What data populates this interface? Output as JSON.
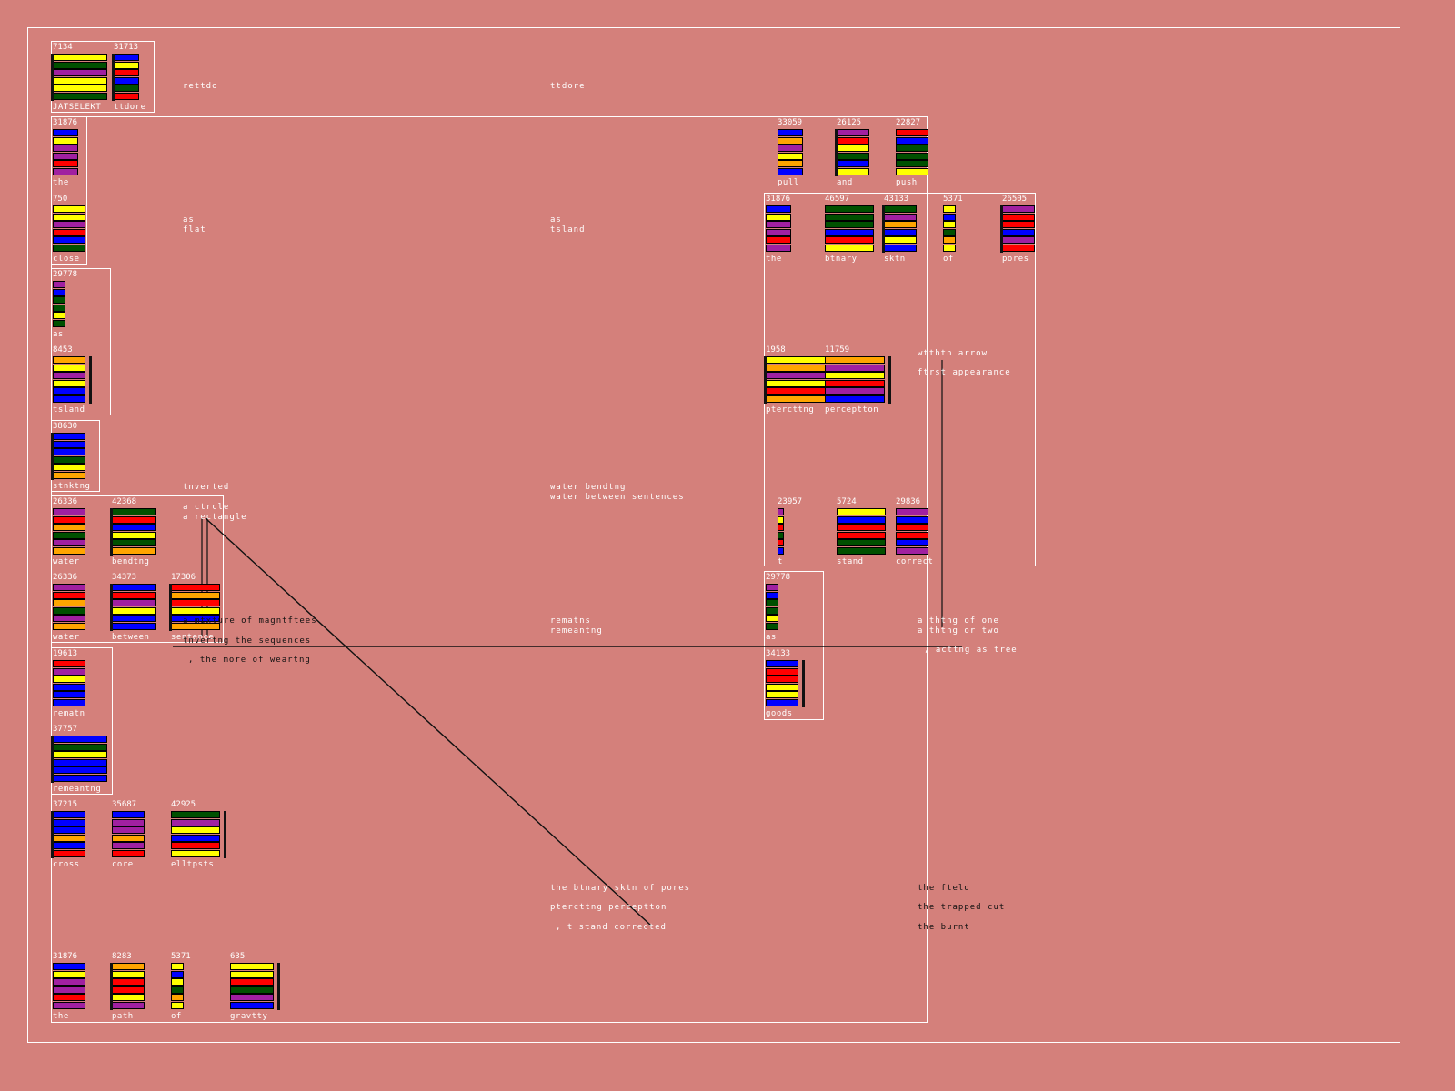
{
  "palette": {
    "background": "#d4807b",
    "frame": "#ffffff",
    "ink": "#111111",
    "label": "#ffffff",
    "yellow": "#ffff00",
    "blue": "#0000ff",
    "purple": "#a020a0",
    "green": "#005000",
    "red": "#ff0000",
    "orange": "#ffa500"
  },
  "words": [
    {
      "id": "w1",
      "number": "7134",
      "label": "JATSELEKT",
      "rule": "left",
      "bars": [
        [
          "yellow",
          1
        ],
        [
          "green",
          1
        ],
        [
          "purple",
          1
        ],
        [
          "yellow",
          1
        ],
        [
          "yellow",
          1
        ],
        [
          "green",
          1
        ]
      ]
    },
    {
      "id": "w2",
      "number": "31713",
      "label": "ttdore",
      "rule": "left",
      "bars": [
        [
          "blue",
          1
        ],
        [
          "yellow",
          1
        ],
        [
          "red",
          1
        ],
        [
          "blue",
          1
        ],
        [
          "green",
          1
        ],
        [
          "red",
          1
        ]
      ]
    },
    {
      "id": "w3",
      "number": "31876",
      "label": "the",
      "bars": [
        [
          "blue",
          1
        ],
        [
          "yellow",
          1
        ],
        [
          "purple",
          1
        ],
        [
          "purple",
          1
        ],
        [
          "red",
          1
        ],
        [
          "purple",
          1
        ]
      ]
    },
    {
      "id": "w4",
      "number": "750",
      "label": "close",
      "bars": [
        [
          "yellow",
          1
        ],
        [
          "yellow",
          1
        ],
        [
          "purple",
          1
        ],
        [
          "red",
          1
        ],
        [
          "blue",
          1
        ],
        [
          "green",
          1
        ]
      ]
    },
    {
      "id": "w5",
      "number": "29778",
      "label": "as",
      "bars": [
        [
          "purple",
          1
        ],
        [
          "blue",
          1
        ],
        [
          "green",
          1
        ],
        [
          "green",
          1
        ],
        [
          "yellow",
          1
        ],
        [
          "green",
          1
        ]
      ]
    },
    {
      "id": "w6",
      "number": "8453",
      "label": "tsland",
      "rule": "right",
      "bars": [
        [
          "orange",
          1
        ],
        [
          "yellow",
          1
        ],
        [
          "purple",
          1
        ],
        [
          "yellow",
          1
        ],
        [
          "blue",
          1
        ],
        [
          "blue",
          1
        ]
      ]
    },
    {
      "id": "w7",
      "number": "38630",
      "label": "stnktng",
      "rule": "left",
      "bars": [
        [
          "blue",
          1
        ],
        [
          "blue",
          1
        ],
        [
          "blue",
          1
        ],
        [
          "green",
          1
        ],
        [
          "yellow",
          1
        ],
        [
          "orange",
          1
        ]
      ]
    },
    {
      "id": "w8",
      "number": "26336",
      "label": "water",
      "bars": [
        [
          "purple",
          1
        ],
        [
          "red",
          1
        ],
        [
          "orange",
          1
        ],
        [
          "green",
          1
        ],
        [
          "purple",
          1
        ],
        [
          "orange",
          1
        ]
      ]
    },
    {
      "id": "w9",
      "number": "42368",
      "label": "bendtng",
      "rule": "left",
      "bars": [
        [
          "green",
          1
        ],
        [
          "red",
          1
        ],
        [
          "blue",
          1
        ],
        [
          "yellow",
          1
        ],
        [
          "green",
          1
        ],
        [
          "orange",
          1
        ]
      ]
    },
    {
      "id": "w10",
      "number": "26336",
      "label": "water",
      "bars": [
        [
          "purple",
          1
        ],
        [
          "red",
          1
        ],
        [
          "orange",
          1
        ],
        [
          "green",
          1
        ],
        [
          "purple",
          1
        ],
        [
          "orange",
          1
        ]
      ]
    },
    {
      "id": "w11",
      "number": "34373",
      "label": "between",
      "rule": "left",
      "bars": [
        [
          "blue",
          1
        ],
        [
          "red",
          1
        ],
        [
          "purple",
          1
        ],
        [
          "yellow",
          1
        ],
        [
          "blue",
          1
        ],
        [
          "blue",
          1
        ]
      ]
    },
    {
      "id": "w12",
      "number": "17306",
      "label": "sentence",
      "rule": "left",
      "bars": [
        [
          "red",
          1
        ],
        [
          "orange",
          1
        ],
        [
          "red",
          1
        ],
        [
          "yellow",
          1
        ],
        [
          "blue",
          1
        ],
        [
          "orange",
          1
        ]
      ]
    },
    {
      "id": "w13",
      "number": "19613",
      "label": "rematn",
      "bars": [
        [
          "red",
          1
        ],
        [
          "purple",
          1
        ],
        [
          "yellow",
          1
        ],
        [
          "blue",
          1
        ],
        [
          "blue",
          1
        ],
        [
          "blue",
          1
        ]
      ]
    },
    {
      "id": "w14",
      "number": "37757",
      "label": "remeantng",
      "rule": "left",
      "bars": [
        [
          "blue",
          1
        ],
        [
          "green",
          1
        ],
        [
          "yellow",
          1
        ],
        [
          "blue",
          1
        ],
        [
          "blue",
          1
        ],
        [
          "blue",
          1
        ]
      ]
    },
    {
      "id": "w15",
      "number": "37215",
      "label": "cross",
      "rule": "left",
      "bars": [
        [
          "blue",
          1
        ],
        [
          "blue",
          1
        ],
        [
          "blue",
          1
        ],
        [
          "orange",
          1
        ],
        [
          "blue",
          1
        ],
        [
          "red",
          1
        ]
      ]
    },
    {
      "id": "w16",
      "number": "35687",
      "label": "core",
      "bars": [
        [
          "blue",
          1
        ],
        [
          "purple",
          1
        ],
        [
          "purple",
          1
        ],
        [
          "orange",
          1
        ],
        [
          "purple",
          1
        ],
        [
          "red",
          1
        ]
      ]
    },
    {
      "id": "w17",
      "number": "42925",
      "label": "elltpsts",
      "rule": "right",
      "bars": [
        [
          "green",
          1
        ],
        [
          "purple",
          1
        ],
        [
          "yellow",
          1
        ],
        [
          "blue",
          1
        ],
        [
          "red",
          1
        ],
        [
          "yellow",
          1
        ]
      ]
    },
    {
      "id": "w18",
      "number": "31876",
      "label": "the",
      "bars": [
        [
          "blue",
          1
        ],
        [
          "yellow",
          1
        ],
        [
          "purple",
          1
        ],
        [
          "purple",
          1
        ],
        [
          "red",
          1
        ],
        [
          "purple",
          1
        ]
      ]
    },
    {
      "id": "w19",
      "number": "8283",
      "label": "path",
      "rule": "left",
      "bars": [
        [
          "orange",
          1
        ],
        [
          "yellow",
          1
        ],
        [
          "red",
          1
        ],
        [
          "red",
          1
        ],
        [
          "yellow",
          1
        ],
        [
          "purple",
          1
        ]
      ]
    },
    {
      "id": "w20",
      "number": "5371",
      "label": "of",
      "bars": [
        [
          "yellow",
          1
        ],
        [
          "blue",
          1
        ],
        [
          "yellow",
          1
        ],
        [
          "green",
          1
        ],
        [
          "orange",
          1
        ],
        [
          "yellow",
          1
        ]
      ]
    },
    {
      "id": "w21",
      "number": "635",
      "label": "gravtty",
      "rule": "right",
      "bars": [
        [
          "yellow",
          1
        ],
        [
          "yellow",
          1
        ],
        [
          "red",
          1
        ],
        [
          "green",
          1
        ],
        [
          "purple",
          1
        ],
        [
          "blue",
          1
        ]
      ]
    },
    {
      "id": "w22",
      "number": "33059",
      "label": "pull",
      "bars": [
        [
          "blue",
          1
        ],
        [
          "orange",
          1
        ],
        [
          "purple",
          1
        ],
        [
          "yellow",
          1
        ],
        [
          "orange",
          1
        ],
        [
          "blue",
          1
        ]
      ]
    },
    {
      "id": "w23",
      "number": "26125",
      "label": "and",
      "rule": "left",
      "bars": [
        [
          "purple",
          1
        ],
        [
          "red",
          1
        ],
        [
          "yellow",
          1
        ],
        [
          "green",
          1
        ],
        [
          "blue",
          1
        ],
        [
          "yellow",
          1
        ]
      ]
    },
    {
      "id": "w24",
      "number": "22827",
      "label": "push",
      "bars": [
        [
          "red",
          1
        ],
        [
          "blue",
          1
        ],
        [
          "green",
          1
        ],
        [
          "green",
          1
        ],
        [
          "green",
          1
        ],
        [
          "yellow",
          1
        ]
      ]
    },
    {
      "id": "w25",
      "number": "31876",
      "label": "the",
      "bars": [
        [
          "blue",
          1
        ],
        [
          "yellow",
          1
        ],
        [
          "purple",
          1
        ],
        [
          "purple",
          1
        ],
        [
          "red",
          1
        ],
        [
          "purple",
          1
        ]
      ]
    },
    {
      "id": "w26",
      "number": "46597",
      "label": "btnary",
      "bars": [
        [
          "green",
          1
        ],
        [
          "green",
          1
        ],
        [
          "green",
          1
        ],
        [
          "blue",
          1
        ],
        [
          "red",
          1
        ],
        [
          "yellow",
          1
        ]
      ]
    },
    {
      "id": "w27",
      "number": "43133",
      "label": "sktn",
      "rule": "left",
      "bars": [
        [
          "green",
          1
        ],
        [
          "purple",
          1
        ],
        [
          "orange",
          1
        ],
        [
          "blue",
          1
        ],
        [
          "yellow",
          1
        ],
        [
          "blue",
          1
        ]
      ]
    },
    {
      "id": "w28",
      "number": "5371",
      "label": "of",
      "bars": [
        [
          "yellow",
          1
        ],
        [
          "blue",
          1
        ],
        [
          "yellow",
          1
        ],
        [
          "green",
          1
        ],
        [
          "orange",
          1
        ],
        [
          "yellow",
          1
        ]
      ]
    },
    {
      "id": "w29",
      "number": "26505",
      "label": "pores",
      "rule": "left",
      "bars": [
        [
          "purple",
          1
        ],
        [
          "red",
          1
        ],
        [
          "red",
          1
        ],
        [
          "blue",
          1
        ],
        [
          "purple",
          1
        ],
        [
          "red",
          1
        ]
      ]
    },
    {
      "id": "w30",
      "number": "1958",
      "label": "ptercttng",
      "rule": "left",
      "bars": [
        [
          "yellow",
          1
        ],
        [
          "orange",
          1
        ],
        [
          "purple",
          1
        ],
        [
          "yellow",
          1
        ],
        [
          "red",
          1
        ],
        [
          "orange",
          1
        ]
      ]
    },
    {
      "id": "w31",
      "number": "11759",
      "label": "perceptton",
      "rule": "right",
      "bars": [
        [
          "orange",
          1
        ],
        [
          "purple",
          1
        ],
        [
          "yellow",
          1
        ],
        [
          "red",
          1
        ],
        [
          "purple",
          1
        ],
        [
          "blue",
          1
        ]
      ]
    },
    {
      "id": "w32",
      "number": "23957",
      "label": "t",
      "bars": [
        [
          "purple",
          1
        ],
        [
          "yellow",
          1
        ],
        [
          "red",
          1
        ],
        [
          "green",
          1
        ],
        [
          "red",
          1
        ],
        [
          "blue",
          1
        ]
      ]
    },
    {
      "id": "w33",
      "number": "5724",
      "label": "stand",
      "bars": [
        [
          "yellow",
          1
        ],
        [
          "blue",
          1
        ],
        [
          "red",
          1
        ],
        [
          "red",
          1
        ],
        [
          "green",
          1
        ],
        [
          "green",
          1
        ]
      ]
    },
    {
      "id": "w34",
      "number": "29836",
      "label": "correct",
      "bars": [
        [
          "purple",
          1
        ],
        [
          "blue",
          1
        ],
        [
          "red",
          1
        ],
        [
          "red",
          1
        ],
        [
          "blue",
          1
        ],
        [
          "purple",
          1
        ]
      ]
    },
    {
      "id": "w35",
      "number": "29778",
      "label": "as",
      "bars": [
        [
          "purple",
          1
        ],
        [
          "blue",
          1
        ],
        [
          "green",
          1
        ],
        [
          "green",
          1
        ],
        [
          "yellow",
          1
        ],
        [
          "green",
          1
        ]
      ]
    },
    {
      "id": "w36",
      "number": "34133",
      "label": "goods",
      "rule": "right",
      "bars": [
        [
          "blue",
          1
        ],
        [
          "red",
          1
        ],
        [
          "red",
          1
        ],
        [
          "yellow",
          1
        ],
        [
          "yellow",
          1
        ],
        [
          "blue",
          1
        ]
      ]
    }
  ],
  "texts": [
    {
      "id": "t1",
      "text": "rettdo",
      "ink": "w"
    },
    {
      "id": "t2",
      "text": "ttdore",
      "ink": "w"
    },
    {
      "id": "t3",
      "text": "as\nflat",
      "ink": "w"
    },
    {
      "id": "t4",
      "text": "as\ntsland",
      "ink": "w"
    },
    {
      "id": "t5",
      "text": "tnverted",
      "ink": "w"
    },
    {
      "id": "t6",
      "text": "a ctrcle\na rectangle",
      "ink": "w"
    },
    {
      "id": "t7",
      "text": "water bendtng\nwater between sentences",
      "ink": "w"
    },
    {
      "id": "t8",
      "text": "a mtxture of magntftees",
      "ink": "k"
    },
    {
      "id": "t9",
      "text": "tnvertng the sequences",
      "ink": "k"
    },
    {
      "id": "t10",
      "text": ", the more of weartng",
      "ink": "k"
    },
    {
      "id": "t11",
      "text": "rematns\nremeantng",
      "ink": "w"
    },
    {
      "id": "t12",
      "text": "wtthtn arrow",
      "ink": "w"
    },
    {
      "id": "t13",
      "text": "ftrst appearance",
      "ink": "w"
    },
    {
      "id": "t14",
      "text": "a thtng of one\na thtng or two",
      "ink": "w"
    },
    {
      "id": "t15",
      "text": ", acttng as tree",
      "ink": "w"
    },
    {
      "id": "t16",
      "text": "the btnary sktn of pores",
      "ink": "w"
    },
    {
      "id": "t17",
      "text": "ptercttng perceptton",
      "ink": "w"
    },
    {
      "id": "t18",
      "text": ", t stand corrected",
      "ink": "w"
    },
    {
      "id": "t19",
      "text": "the fteld",
      "ink": "k"
    },
    {
      "id": "t20",
      "text": "the trapped cut",
      "ink": "k"
    },
    {
      "id": "t21",
      "text": "the burnt",
      "ink": "k"
    }
  ]
}
